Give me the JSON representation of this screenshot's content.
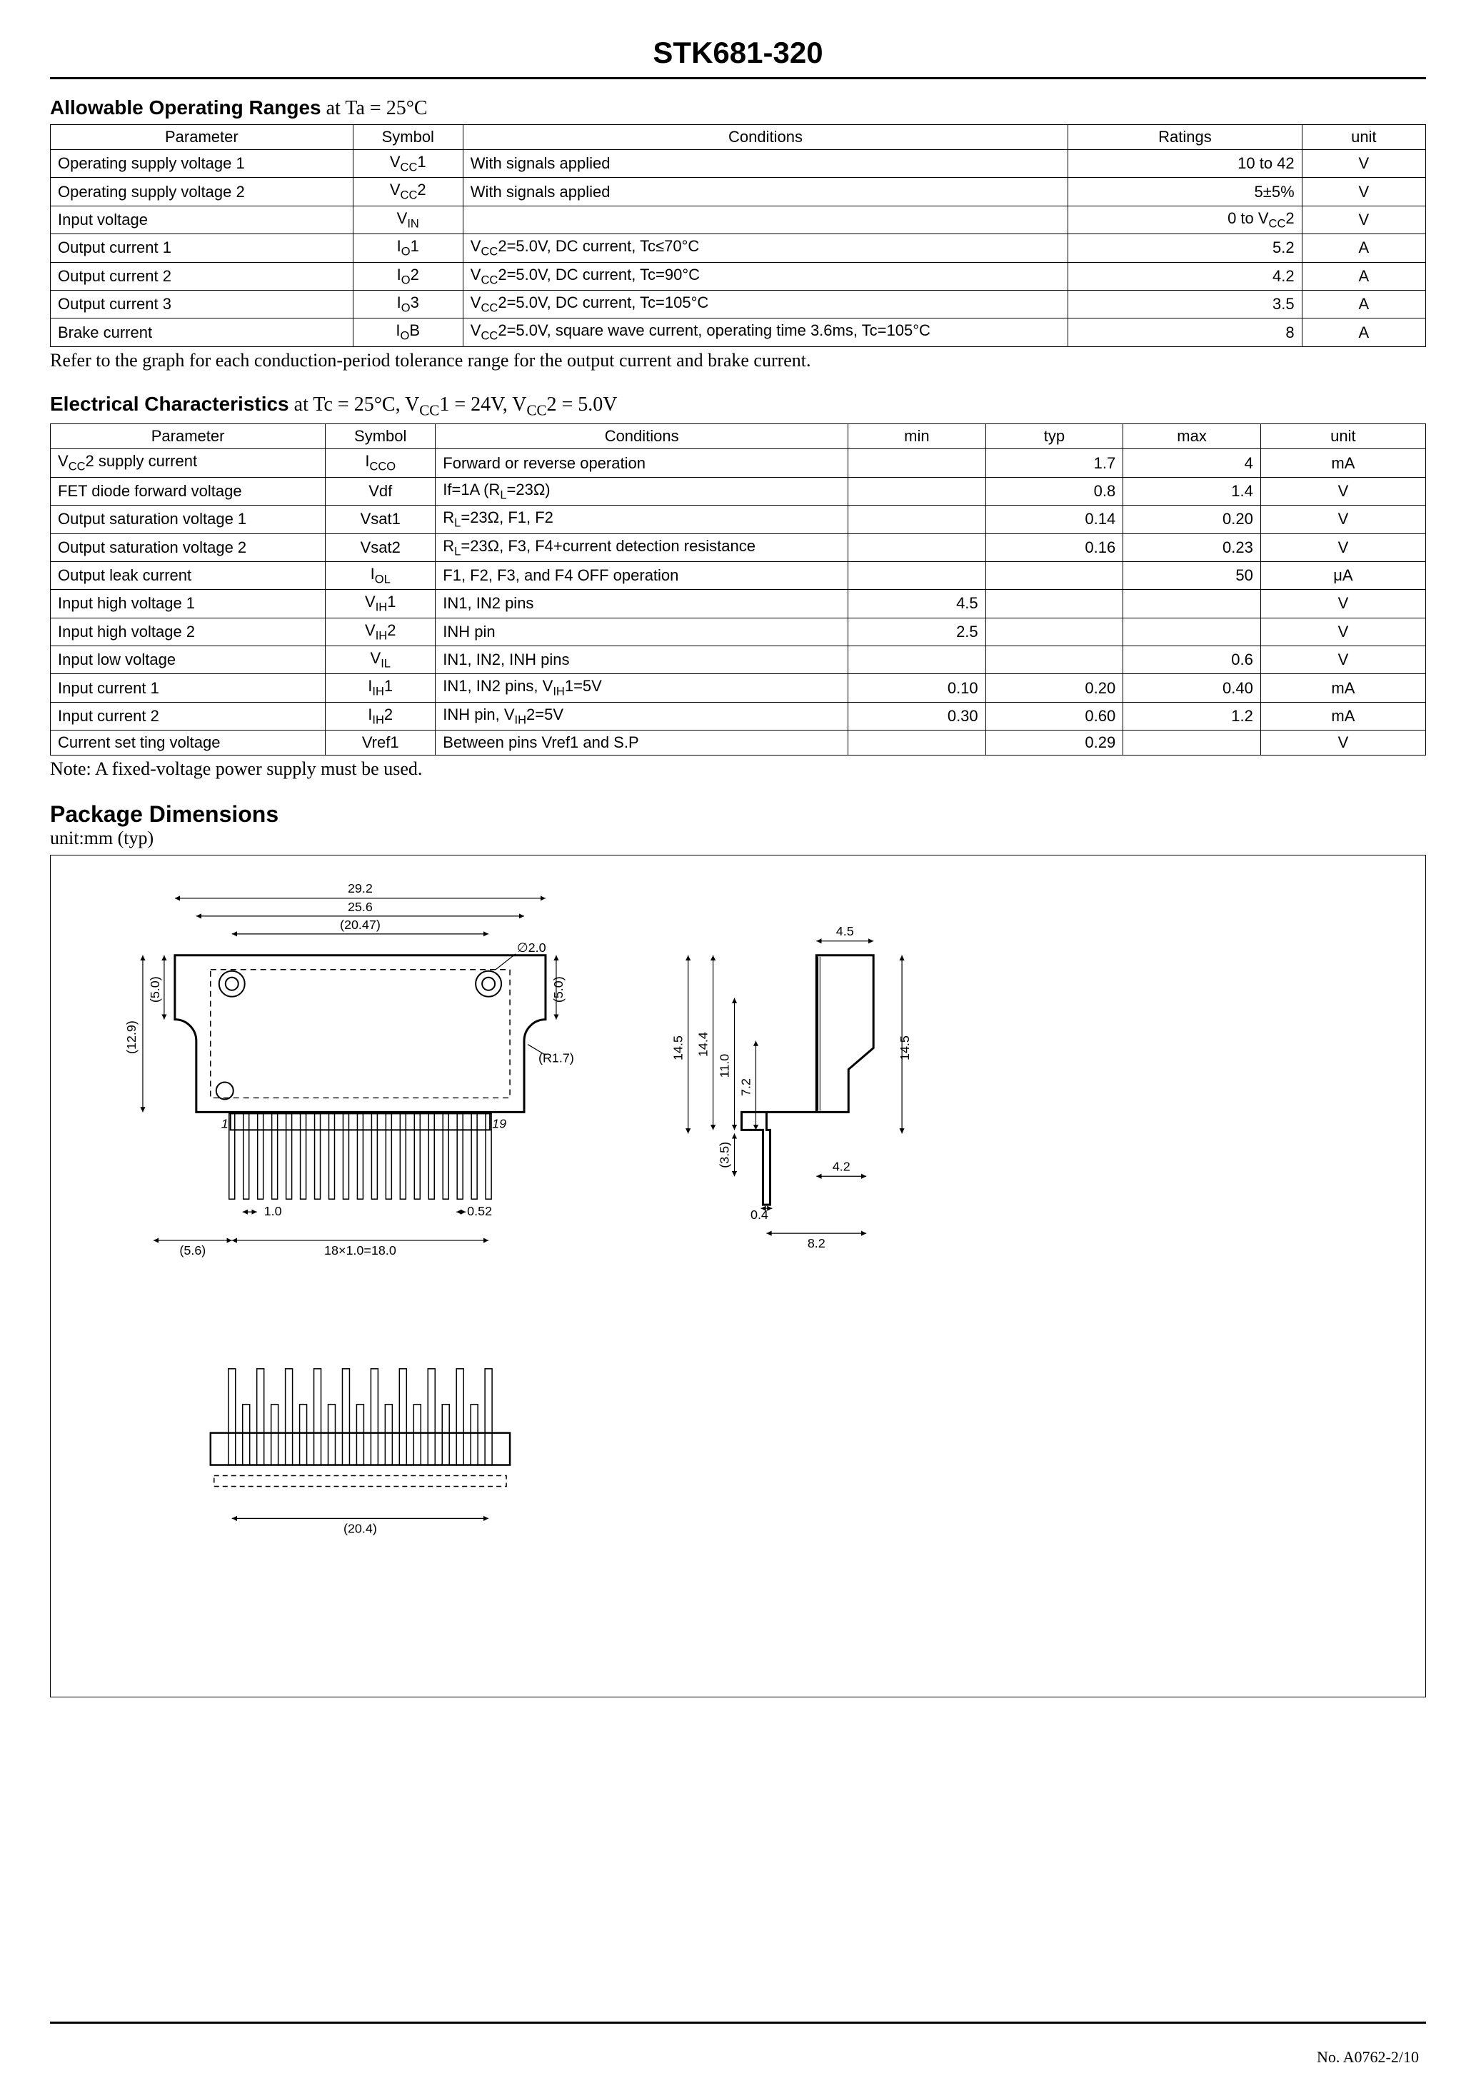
{
  "page_title": "STK681-320",
  "section1": {
    "title": "Allowable Operating Ranges",
    "cond": " at Ta = 25°C",
    "columns": [
      "Parameter",
      "Symbol",
      "Conditions",
      "Ratings",
      "unit"
    ],
    "rows": [
      {
        "param": "Operating supply voltage 1",
        "sym_html": "V<sub>CC</sub>1",
        "cond": "With signals applied",
        "rating": "10 to 42",
        "unit": "V"
      },
      {
        "param": "Operating supply voltage 2",
        "sym_html": "V<sub>CC</sub>2",
        "cond": "With signals applied",
        "rating": "5±5%",
        "unit": "V"
      },
      {
        "param": "Input voltage",
        "sym_html": "V<sub>IN</sub>",
        "cond": "",
        "rating_html": "0 to V<sub>CC</sub>2",
        "unit": "V"
      },
      {
        "param": "Output current 1",
        "sym_html": "I<sub>O</sub>1",
        "cond_html": "V<sub>CC</sub>2=5.0V, DC current, Tc≤70°C",
        "rating": "5.2",
        "unit": "A"
      },
      {
        "param": "Output current 2",
        "sym_html": "I<sub>O</sub>2",
        "cond_html": "V<sub>CC</sub>2=5.0V, DC current, Tc=90°C",
        "rating": "4.2",
        "unit": "A"
      },
      {
        "param": "Output current 3",
        "sym_html": "I<sub>O</sub>3",
        "cond_html": "V<sub>CC</sub>2=5.0V, DC current, Tc=105°C",
        "rating": "3.5",
        "unit": "A"
      },
      {
        "param": "Brake current",
        "sym_html": "I<sub>O</sub>B",
        "cond_html": "V<sub>CC</sub>2=5.0V, square wave current, operating time 3.6ms, Tc=105°C",
        "rating": "8",
        "unit": "A"
      }
    ],
    "note": "Refer to the graph for each conduction-period tolerance range for the output current and brake current."
  },
  "section2": {
    "title": "Electrical Characteristics",
    "cond_html": " at Tc = 25°C, V<sub>CC</sub>1 = 24V, V<sub>CC</sub>2 = 5.0V",
    "columns": [
      "Parameter",
      "Symbol",
      "Conditions",
      "min",
      "typ",
      "max",
      "unit"
    ],
    "rows": [
      {
        "param_html": "V<sub>CC</sub>2 supply current",
        "sym_html": "I<sub>CCO</sub>",
        "cond": "Forward or reverse operation",
        "min": "",
        "typ": "1.7",
        "max": "4",
        "unit": "mA"
      },
      {
        "param": "FET diode forward voltage",
        "sym": "Vdf",
        "cond_html": "If=1A (R<sub>L</sub>=23Ω)",
        "min": "",
        "typ": "0.8",
        "max": "1.4",
        "unit": "V"
      },
      {
        "param": "Output saturation voltage 1",
        "sym": "Vsat1",
        "cond_html": "R<sub>L</sub>=23Ω, F1, F2",
        "min": "",
        "typ": "0.14",
        "max": "0.20",
        "unit": "V"
      },
      {
        "param": "Output saturation voltage 2",
        "sym": "Vsat2",
        "cond_html": "R<sub>L</sub>=23Ω, F3, F4+current detection resistance",
        "min": "",
        "typ": "0.16",
        "max": "0.23",
        "unit": "V"
      },
      {
        "param": "Output leak current",
        "sym_html": "I<sub>OL</sub>",
        "cond": "F1, F2, F3, and F4 OFF operation",
        "min": "",
        "typ": "",
        "max": "50",
        "unit": "μA"
      },
      {
        "param": "Input high voltage 1",
        "sym_html": "V<sub>IH</sub>1",
        "cond": "IN1, IN2 pins",
        "min": "4.5",
        "typ": "",
        "max": "",
        "unit": "V"
      },
      {
        "param": "Input high voltage 2",
        "sym_html": "V<sub>IH</sub>2",
        "cond": "INH pin",
        "min": "2.5",
        "typ": "",
        "max": "",
        "unit": "V"
      },
      {
        "param": "Input low voltage",
        "sym_html": "V<sub>IL</sub>",
        "cond": "IN1, IN2, INH pins",
        "min": "",
        "typ": "",
        "max": "0.6",
        "unit": "V"
      },
      {
        "param": "Input current 1",
        "sym_html": "I<sub>IH</sub>1",
        "cond_html": "IN1, IN2 pins, V<sub>IH</sub>1=5V",
        "min": "0.10",
        "typ": "0.20",
        "max": "0.40",
        "unit": "mA"
      },
      {
        "param": "Input current 2",
        "sym_html": "I<sub>IH</sub>2",
        "cond_html": "INH pin, V<sub>IH</sub>2=5V",
        "min": "0.30",
        "typ": "0.60",
        "max": "1.2",
        "unit": "mA"
      },
      {
        "param": "Current set ting voltage",
        "sym": "Vref1",
        "cond": "Between pins Vref1 and S.P",
        "min": "",
        "typ": "0.29",
        "max": "",
        "unit": "V"
      }
    ],
    "note": "Note: A fixed-voltage power supply must be used."
  },
  "package": {
    "title": "Package Dimensions",
    "sub": "unit:mm (typ)",
    "dims": {
      "w_outer": "29.2",
      "w_inner": "25.6",
      "w_paren": "(20.47)",
      "hole_d": "∅2.0",
      "h_left": "(12.9)",
      "h_notch": "(5.0)",
      "r_notch": "(R1.7)",
      "pin1": "1",
      "pin19": "19",
      "pin_w": "1.0",
      "pin_t": "0.52",
      "offset": "(5.6)",
      "pitch": "18×1.0=18.0",
      "side_w1": "4.5",
      "side_h1": "14.5",
      "side_h2": "14.4",
      "side_h3": "11.0",
      "side_h4": "7.2",
      "side_h5": "(3.5)",
      "side_h6": "14.5",
      "side_w2": "4.2",
      "side_w3": "0.4",
      "side_w4": "8.2",
      "bottom_w": "(20.4)"
    }
  },
  "page_num": "No. A0762-2/10",
  "colors": {
    "text": "#000000",
    "bg": "#ffffff",
    "border": "#000000"
  },
  "table1_colwidths_pct": [
    22,
    8,
    44,
    17,
    9
  ],
  "table2_colwidths_pct": [
    20,
    8,
    30,
    10,
    10,
    10,
    12
  ]
}
